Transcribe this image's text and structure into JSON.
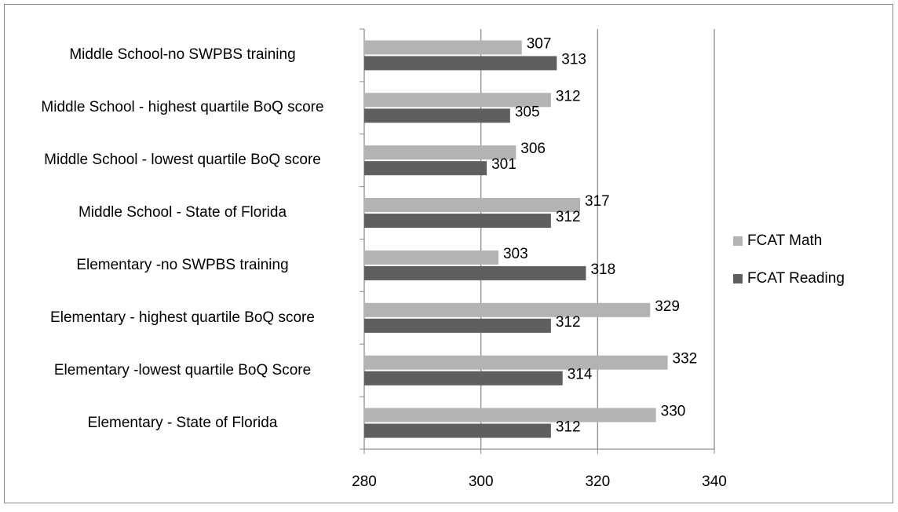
{
  "chart_data": {
    "type": "bar",
    "orientation": "horizontal",
    "categories": [
      "Middle School-no SWPBS training",
      "Middle School  - highest quartile BoQ score",
      "Middle School - lowest quartile BoQ score",
      "Middle School - State of Florida",
      "Elementary -no SWPBS training",
      "Elementary - highest quartile BoQ score",
      "Elementary -lowest quartile BoQ Score",
      "Elementary - State of Florida"
    ],
    "series": [
      {
        "name": "FCAT Math",
        "color": "#b3b3b3",
        "values": [
          307,
          312,
          306,
          317,
          303,
          329,
          332,
          330
        ]
      },
      {
        "name": "FCAT Reading",
        "color": "#5f5f5f",
        "values": [
          313,
          305,
          301,
          312,
          318,
          312,
          314,
          312
        ]
      }
    ],
    "xlim": [
      280,
      340
    ],
    "xticks": [
      280,
      300,
      320,
      340
    ],
    "grid": true,
    "legend": "right"
  }
}
